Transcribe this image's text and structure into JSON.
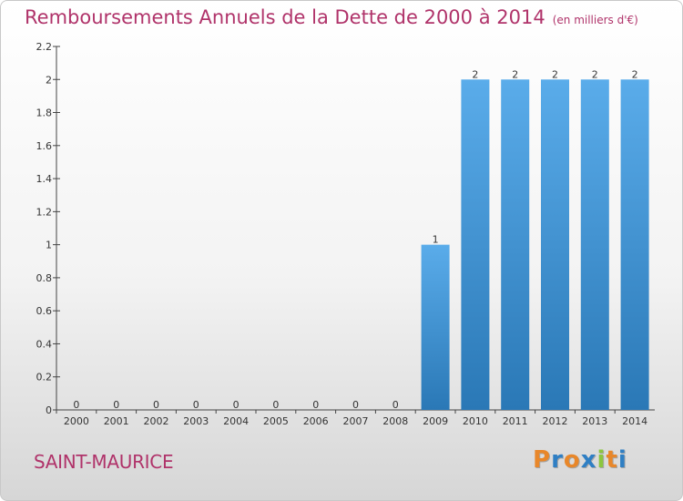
{
  "header": {
    "title": "Remboursements Annuels de la Dette de 2000 à 2014",
    "subtitle": "(en milliers d'€)"
  },
  "footer": {
    "place": "SAINT-MAURICE",
    "logo": "Proxiti"
  },
  "colors": {
    "title": "#b0336a",
    "bar_top": "#5aacea",
    "bar_bottom": "#2a78b6",
    "logo_letters": [
      "#e8872a",
      "#2f7fc4",
      "#e8872a",
      "#2f7fc4",
      "#8cc63f",
      "#e8872a",
      "#2f7fc4"
    ]
  },
  "chart_data": {
    "type": "bar",
    "title": "Remboursements Annuels de la Dette de 2000 à 2014",
    "xlabel": "",
    "ylabel": "",
    "categories": [
      "2000",
      "2001",
      "2002",
      "2003",
      "2004",
      "2005",
      "2006",
      "2007",
      "2008",
      "2009",
      "2010",
      "2011",
      "2012",
      "2013",
      "2014"
    ],
    "values": [
      0,
      0,
      0,
      0,
      0,
      0,
      0,
      0,
      0,
      1,
      2,
      2,
      2,
      2,
      2
    ],
    "data_labels": [
      "0",
      "0",
      "0",
      "0",
      "0",
      "0",
      "0",
      "0",
      "0",
      "1",
      "2",
      "2",
      "2",
      "2",
      "2"
    ],
    "ylim": [
      0,
      2.2
    ],
    "yticks": [
      0,
      0.2,
      0.4,
      0.6,
      0.8,
      1,
      1.2,
      1.4,
      1.6,
      1.8,
      2,
      2.2
    ],
    "ytick_labels": [
      "0",
      "0.2",
      "0.4",
      "0.6",
      "0.8",
      "1",
      "1.2",
      "1.4",
      "1.6",
      "1.8",
      "2",
      "2.2"
    ],
    "grid": false,
    "legend": "none"
  }
}
